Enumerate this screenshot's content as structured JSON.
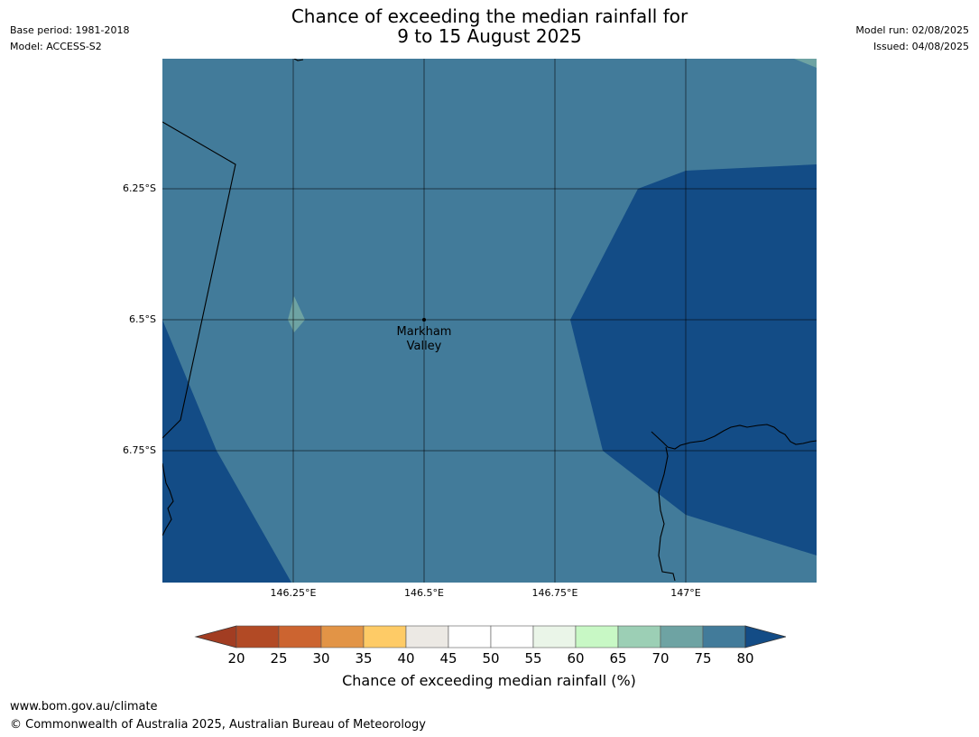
{
  "title": {
    "line1": "Chance of exceeding the median rainfall for",
    "line2": "9 to 15 August 2025"
  },
  "meta_left": {
    "base_period": "Base period: 1981-2018",
    "model": "Model: ACCESS-S2"
  },
  "meta_right": {
    "model_run": "Model run: 02/08/2025",
    "issued": "Issued: 04/08/2025"
  },
  "map": {
    "y_ticks": [
      "6.25°S",
      "6.5°S",
      "6.75°S"
    ],
    "x_ticks": [
      "146.25°E",
      "146.5°E",
      "146.75°E",
      "147°E"
    ],
    "place": {
      "line1": "Markham",
      "line2": "Valley"
    }
  },
  "colorbar": {
    "ticks": [
      "20",
      "25",
      "30",
      "35",
      "40",
      "45",
      "50",
      "55",
      "60",
      "65",
      "70",
      "75",
      "80"
    ],
    "colors": [
      "#a23d22",
      "#b24a25",
      "#cc6430",
      "#e29446",
      "#fecb66",
      "#ece9e4",
      "#ffffff",
      "#ffffff",
      "#eaf5e8",
      "#c8f8c5",
      "#9ccfb5",
      "#6ea3a3",
      "#427b9a",
      "#134c86"
    ],
    "title": "Chance of exceeding median rainfall (%)"
  },
  "footer": {
    "url": "www.bom.gov.au/climate",
    "copyright": "© Commonwealth of Australia 2025, Australian Bureau of Meteorology"
  }
}
